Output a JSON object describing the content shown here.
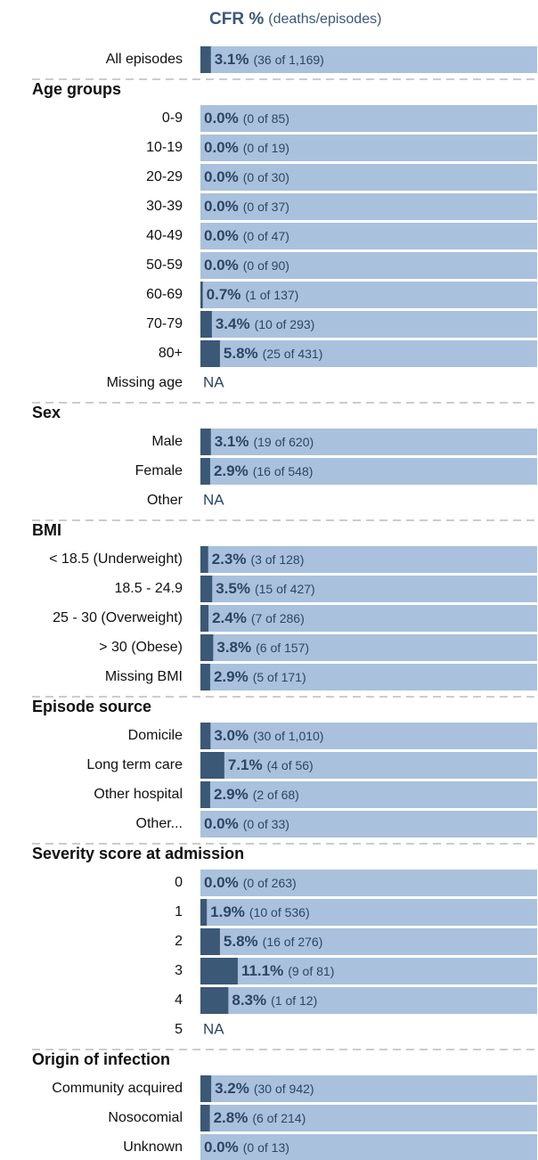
{
  "chart_data": {
    "type": "bar",
    "title": "CFR %",
    "subtitle": "(deaths/episodes)",
    "xlim": [
      0,
      100
    ],
    "bar_color": "#3b5877",
    "track_color": "#a9c1dc",
    "overall": {
      "label": "All episodes",
      "value": 3.1,
      "value_label": "3.1%",
      "detail": "(36 of 1,169)"
    },
    "groups": [
      {
        "name": "Age groups",
        "rows": [
          {
            "label": "0-9",
            "value": 0.0,
            "value_label": "0.0%",
            "detail": "(0 of 85)"
          },
          {
            "label": "10-19",
            "value": 0.0,
            "value_label": "0.0%",
            "detail": "(0 of 19)"
          },
          {
            "label": "20-29",
            "value": 0.0,
            "value_label": "0.0%",
            "detail": "(0 of 30)"
          },
          {
            "label": "30-39",
            "value": 0.0,
            "value_label": "0.0%",
            "detail": "(0 of 37)"
          },
          {
            "label": "40-49",
            "value": 0.0,
            "value_label": "0.0%",
            "detail": "(0 of 47)"
          },
          {
            "label": "50-59",
            "value": 0.0,
            "value_label": "0.0%",
            "detail": "(0 of 90)"
          },
          {
            "label": "60-69",
            "value": 0.7,
            "value_label": "0.7%",
            "detail": "(1 of 137)"
          },
          {
            "label": "70-79",
            "value": 3.4,
            "value_label": "3.4%",
            "detail": "(10 of 293)"
          },
          {
            "label": "80+",
            "value": 5.8,
            "value_label": "5.8%",
            "detail": "(25 of 431)"
          },
          {
            "label": "Missing age",
            "value": null,
            "value_label": "NA"
          }
        ]
      },
      {
        "name": "Sex",
        "rows": [
          {
            "label": "Male",
            "value": 3.1,
            "value_label": "3.1%",
            "detail": "(19 of 620)"
          },
          {
            "label": "Female",
            "value": 2.9,
            "value_label": "2.9%",
            "detail": "(16 of 548)"
          },
          {
            "label": "Other",
            "value": null,
            "value_label": "NA"
          }
        ]
      },
      {
        "name": "BMI",
        "rows": [
          {
            "label": "< 18.5 (Underweight)",
            "value": 2.3,
            "value_label": "2.3%",
            "detail": "(3 of 128)"
          },
          {
            "label": "18.5 - 24.9",
            "value": 3.5,
            "value_label": "3.5%",
            "detail": "(15 of 427)"
          },
          {
            "label": "25 - 30 (Overweight)",
            "value": 2.4,
            "value_label": "2.4%",
            "detail": "(7 of 286)"
          },
          {
            "label": "> 30 (Obese)",
            "value": 3.8,
            "value_label": "3.8%",
            "detail": "(6 of 157)"
          },
          {
            "label": "Missing BMI",
            "value": 2.9,
            "value_label": "2.9%",
            "detail": "(5 of 171)"
          }
        ]
      },
      {
        "name": "Episode source",
        "rows": [
          {
            "label": "Domicile",
            "value": 3.0,
            "value_label": "3.0%",
            "detail": "(30 of 1,010)"
          },
          {
            "label": "Long term care",
            "value": 7.1,
            "value_label": "7.1%",
            "detail": "(4 of 56)"
          },
          {
            "label": "Other hospital",
            "value": 2.9,
            "value_label": "2.9%",
            "detail": "(2 of 68)"
          },
          {
            "label": "Other...",
            "value": 0.0,
            "value_label": "0.0%",
            "detail": "(0 of 33)"
          }
        ]
      },
      {
        "name": "Severity score at admission",
        "rows": [
          {
            "label": "0",
            "value": 0.0,
            "value_label": "0.0%",
            "detail": "(0 of 263)"
          },
          {
            "label": "1",
            "value": 1.9,
            "value_label": "1.9%",
            "detail": "(10 of 536)"
          },
          {
            "label": "2",
            "value": 5.8,
            "value_label": "5.8%",
            "detail": "(16 of 276)"
          },
          {
            "label": "3",
            "value": 11.1,
            "value_label": "11.1%",
            "detail": "(9 of 81)"
          },
          {
            "label": "4",
            "value": 8.3,
            "value_label": "8.3%",
            "detail": "(1 of 12)"
          },
          {
            "label": "5",
            "value": null,
            "value_label": "NA"
          }
        ]
      },
      {
        "name": "Origin of infection",
        "rows": [
          {
            "label": "Community acquired",
            "value": 3.2,
            "value_label": "3.2%",
            "detail": "(30 of 942)"
          },
          {
            "label": "Nosocomial",
            "value": 2.8,
            "value_label": "2.8%",
            "detail": "(6 of 214)"
          },
          {
            "label": "Unknown",
            "value": 0.0,
            "value_label": "0.0%",
            "detail": "(0 of 13)"
          }
        ]
      }
    ]
  }
}
